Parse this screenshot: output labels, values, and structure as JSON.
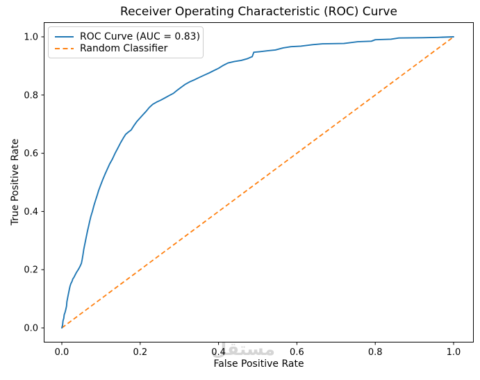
{
  "figure": {
    "title": "Receiver Operating Characteristic (ROC) Curve",
    "xlabel": "False Positive Rate",
    "ylabel": "True Positive Rate"
  },
  "legend": {
    "position": "upper left",
    "entries": [
      {
        "label": "ROC Curve (AUC = 0.83)",
        "color": "#1f77b4",
        "style": "solid"
      },
      {
        "label": "Random Classifier",
        "color": "#ff7f0e",
        "style": "dashed"
      }
    ]
  },
  "watermark": {
    "text": "مستقل",
    "color": "#d5d5d5"
  },
  "chart_data": {
    "type": "line",
    "title": "Receiver Operating Characteristic (ROC) Curve",
    "xlabel": "False Positive Rate",
    "ylabel": "True Positive Rate",
    "xlim": [
      -0.05,
      1.05
    ],
    "ylim": [
      -0.05,
      1.05
    ],
    "x_ticks": [
      0.0,
      0.2,
      0.4,
      0.6,
      0.8,
      1.0
    ],
    "y_ticks": [
      0.0,
      0.2,
      0.4,
      0.6,
      0.8,
      1.0
    ],
    "grid": false,
    "legend_position": "upper left",
    "auc": 0.83,
    "series": [
      {
        "name": "ROC Curve (AUC = 0.83)",
        "color": "#1f77b4",
        "style": "solid",
        "points": [
          [
            0,
            0
          ],
          [
            0.002,
            0.01
          ],
          [
            0.003,
            0.024
          ],
          [
            0.005,
            0.033
          ],
          [
            0.006,
            0.045
          ],
          [
            0.008,
            0.052
          ],
          [
            0.01,
            0.062
          ],
          [
            0.012,
            0.075
          ],
          [
            0.013,
            0.09
          ],
          [
            0.015,
            0.105
          ],
          [
            0.017,
            0.118
          ],
          [
            0.019,
            0.131
          ],
          [
            0.021,
            0.143
          ],
          [
            0.023,
            0.152
          ],
          [
            0.026,
            0.16
          ],
          [
            0.028,
            0.168
          ],
          [
            0.031,
            0.174
          ],
          [
            0.034,
            0.182
          ],
          [
            0.037,
            0.19
          ],
          [
            0.041,
            0.198
          ],
          [
            0.044,
            0.205
          ],
          [
            0.047,
            0.213
          ],
          [
            0.05,
            0.222
          ],
          [
            0.052,
            0.235
          ],
          [
            0.054,
            0.252
          ],
          [
            0.056,
            0.27
          ],
          [
            0.059,
            0.29
          ],
          [
            0.062,
            0.31
          ],
          [
            0.065,
            0.33
          ],
          [
            0.068,
            0.348
          ],
          [
            0.071,
            0.365
          ],
          [
            0.074,
            0.382
          ],
          [
            0.078,
            0.4
          ],
          [
            0.082,
            0.42
          ],
          [
            0.086,
            0.438
          ],
          [
            0.09,
            0.455
          ],
          [
            0.094,
            0.472
          ],
          [
            0.099,
            0.49
          ],
          [
            0.104,
            0.508
          ],
          [
            0.11,
            0.527
          ],
          [
            0.116,
            0.545
          ],
          [
            0.122,
            0.563
          ],
          [
            0.129,
            0.58
          ],
          [
            0.136,
            0.6
          ],
          [
            0.143,
            0.618
          ],
          [
            0.15,
            0.636
          ],
          [
            0.157,
            0.652
          ],
          [
            0.163,
            0.665
          ],
          [
            0.17,
            0.673
          ],
          [
            0.177,
            0.68
          ],
          [
            0.184,
            0.695
          ],
          [
            0.191,
            0.708
          ],
          [
            0.199,
            0.72
          ],
          [
            0.207,
            0.732
          ],
          [
            0.215,
            0.744
          ],
          [
            0.223,
            0.757
          ],
          [
            0.232,
            0.768
          ],
          [
            0.242,
            0.776
          ],
          [
            0.252,
            0.782
          ],
          [
            0.263,
            0.79
          ],
          [
            0.274,
            0.798
          ],
          [
            0.285,
            0.806
          ],
          [
            0.294,
            0.816
          ],
          [
            0.304,
            0.826
          ],
          [
            0.314,
            0.836
          ],
          [
            0.326,
            0.845
          ],
          [
            0.338,
            0.852
          ],
          [
            0.35,
            0.86
          ],
          [
            0.363,
            0.868
          ],
          [
            0.376,
            0.876
          ],
          [
            0.388,
            0.884
          ],
          [
            0.4,
            0.892
          ],
          [
            0.412,
            0.902
          ],
          [
            0.424,
            0.91
          ],
          [
            0.44,
            0.915
          ],
          [
            0.458,
            0.919
          ],
          [
            0.474,
            0.925
          ],
          [
            0.486,
            0.932
          ],
          [
            0.49,
            0.947
          ],
          [
            0.505,
            0.949
          ],
          [
            0.525,
            0.952
          ],
          [
            0.545,
            0.955
          ],
          [
            0.565,
            0.962
          ],
          [
            0.585,
            0.966
          ],
          [
            0.61,
            0.968
          ],
          [
            0.64,
            0.973
          ],
          [
            0.665,
            0.976
          ],
          [
            0.72,
            0.977
          ],
          [
            0.755,
            0.983
          ],
          [
            0.79,
            0.985
          ],
          [
            0.8,
            0.99
          ],
          [
            0.84,
            0.992
          ],
          [
            0.86,
            0.996
          ],
          [
            0.92,
            0.997
          ],
          [
            0.96,
            0.998
          ],
          [
            1,
            1
          ]
        ]
      },
      {
        "name": "Random Classifier",
        "color": "#ff7f0e",
        "style": "dashed",
        "points": [
          [
            0,
            0
          ],
          [
            1,
            1
          ]
        ]
      }
    ]
  }
}
